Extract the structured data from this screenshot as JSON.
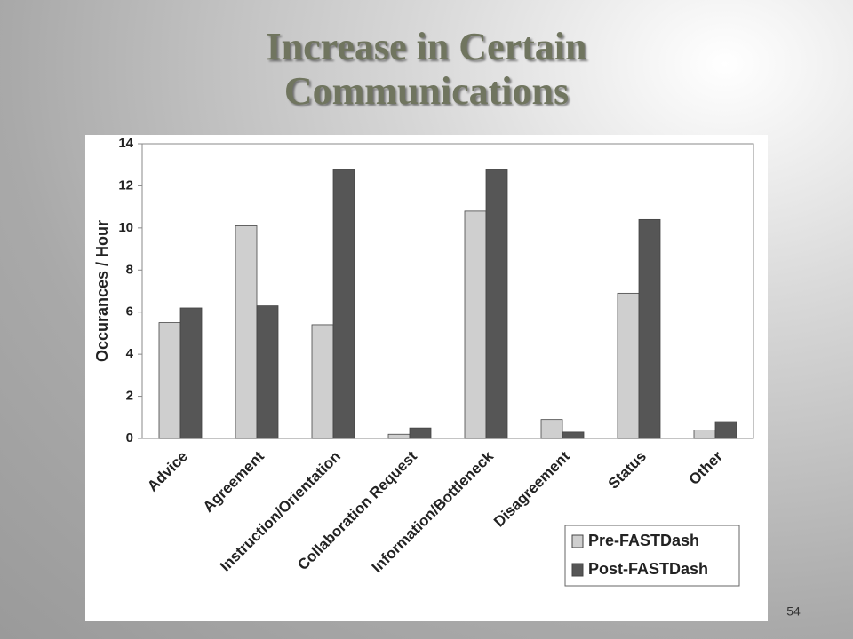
{
  "chart_data": {
    "type": "bar",
    "title": "Increase in Certain Communications",
    "y_label": "Occurances / Hour",
    "categories": [
      "Advice",
      "Agreement",
      "Instruction/Orientation",
      "Collaboration Request",
      "Information/Bottleneck",
      "Disagreement",
      "Status",
      "Other"
    ],
    "series": [
      {
        "name": "Pre-FASTDash",
        "color": "#cfcfcf",
        "values": [
          5.5,
          10.1,
          5.4,
          0.2,
          10.8,
          0.9,
          6.9,
          0.4
        ]
      },
      {
        "name": "Post-FASTDash",
        "color": "#565656",
        "values": [
          6.2,
          6.3,
          12.8,
          0.5,
          12.8,
          0.3,
          10.4,
          0.8
        ]
      }
    ],
    "ylim": [
      0,
      14
    ],
    "yticks": [
      0,
      2,
      4,
      6,
      8,
      10,
      12,
      14
    ],
    "legend": "lower right",
    "page_number": "54"
  }
}
